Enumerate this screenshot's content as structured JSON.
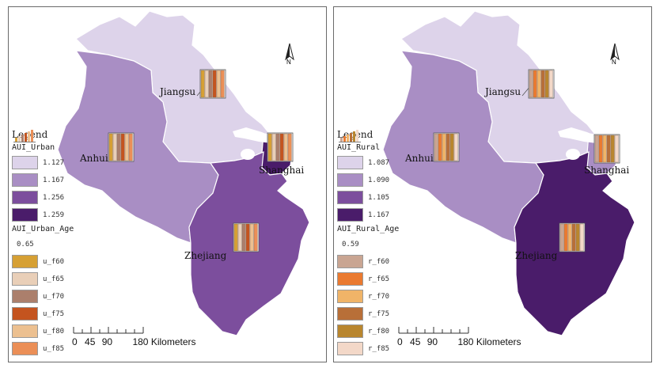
{
  "maps": [
    {
      "id": "left",
      "legend_title": "Legend",
      "class_field": "AUI_Urban",
      "classes": [
        {
          "label": "1.127",
          "color": "#ddd3ea"
        },
        {
          "label": "1.167",
          "color": "#a98ec4"
        },
        {
          "label": "1.256",
          "color": "#7c4e9d"
        },
        {
          "label": "1.259",
          "color": "#4a1c6a"
        }
      ],
      "age_field": "AUI_Urban_Age",
      "age_value": "0.65",
      "age_series": [
        {
          "label": "u_f60",
          "color": "#d6a034"
        },
        {
          "label": "u_f65",
          "color": "#e9cfb8"
        },
        {
          "label": "u_f70",
          "color": "#ab7f6c"
        },
        {
          "label": "u_f75",
          "color": "#c4541f"
        },
        {
          "label": "u_f80",
          "color": "#ecc090"
        },
        {
          "label": "u_f85",
          "color": "#eb8f57"
        }
      ],
      "provinces": {
        "jiangsu": {
          "name": "Jiangsu",
          "class_index": 0
        },
        "anhui": {
          "name": "Anhui",
          "class_index": 1
        },
        "shanghai": {
          "name": "Shanghai",
          "class_index": 3
        },
        "zhejiang": {
          "name": "Zhejiang",
          "class_index": 2
        }
      }
    },
    {
      "id": "right",
      "legend_title": "Legend",
      "class_field": "AUI_Rural",
      "classes": [
        {
          "label": "1.087",
          "color": "#ddd3ea"
        },
        {
          "label": "1.090",
          "color": "#a98ec4"
        },
        {
          "label": "1.105",
          "color": "#7c4e9d"
        },
        {
          "label": "1.167",
          "color": "#4a1c6a"
        }
      ],
      "age_field": "AUI_Rural_Age",
      "age_value": "0.59",
      "age_series": [
        {
          "label": "r_f60",
          "color": "#c9a592"
        },
        {
          "label": "r_f65",
          "color": "#ea7a30"
        },
        {
          "label": "r_f70",
          "color": "#f0b468"
        },
        {
          "label": "r_f75",
          "color": "#b86f38"
        },
        {
          "label": "r_f80",
          "color": "#b9862e"
        },
        {
          "label": "r_f85",
          "color": "#f3d8c8"
        }
      ],
      "provinces": {
        "jiangsu": {
          "name": "Jiangsu",
          "class_index": 0
        },
        "anhui": {
          "name": "Anhui",
          "class_index": 1
        },
        "shanghai": {
          "name": "Shanghai",
          "class_index": 1
        },
        "zhejiang": {
          "name": "Zhejiang",
          "class_index": 3
        }
      }
    }
  ],
  "scale": {
    "ticks": [
      "0",
      "45",
      "90",
      "180"
    ],
    "unit": "Kilometers"
  },
  "north_label": "N"
}
